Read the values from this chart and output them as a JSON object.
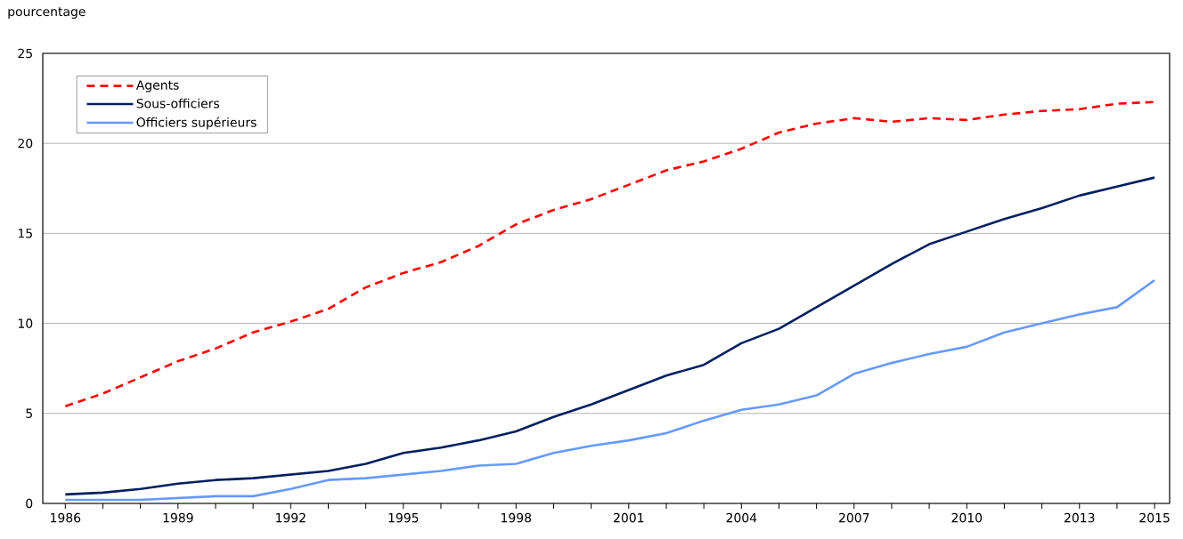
{
  "chart_data": {
    "type": "line",
    "ylabel": "pourcentage",
    "x": [
      1986,
      1987,
      1988,
      1989,
      1990,
      1991,
      1992,
      1993,
      1994,
      1995,
      1996,
      1997,
      1998,
      1999,
      2000,
      2001,
      2002,
      2003,
      2004,
      2005,
      2006,
      2007,
      2008,
      2009,
      2010,
      2011,
      2012,
      2013,
      2014,
      2015
    ],
    "series": [
      {
        "name": "Agents",
        "color": "#ff0000",
        "line_style": "dashed",
        "values": [
          5.4,
          6.1,
          7.0,
          7.9,
          8.6,
          9.5,
          10.1,
          10.8,
          12.0,
          12.8,
          13.4,
          14.3,
          15.5,
          16.3,
          16.9,
          17.7,
          18.5,
          19.0,
          19.7,
          20.6,
          21.1,
          21.4,
          21.2,
          21.4,
          21.3,
          21.6,
          21.8,
          21.9,
          22.2,
          22.3
        ]
      },
      {
        "name": "Sous-officiers",
        "color": "#002060",
        "line_style": "solid",
        "values": [
          0.5,
          0.6,
          0.8,
          1.1,
          1.3,
          1.4,
          1.6,
          1.8,
          2.2,
          2.8,
          3.1,
          3.5,
          4.0,
          4.8,
          5.5,
          6.3,
          7.1,
          7.7,
          8.9,
          9.7,
          10.9,
          12.1,
          13.3,
          14.4,
          15.1,
          15.8,
          16.4,
          17.1,
          17.6,
          18.1
        ]
      },
      {
        "name": "Officiers supérieurs",
        "color": "#6699ff",
        "line_style": "solid",
        "values": [
          0.2,
          0.2,
          0.2,
          0.3,
          0.4,
          0.4,
          0.8,
          1.3,
          1.4,
          1.6,
          1.8,
          2.1,
          2.2,
          2.8,
          3.2,
          3.5,
          3.9,
          4.6,
          5.2,
          5.5,
          6.0,
          7.2,
          7.8,
          8.3,
          8.7,
          9.5,
          10.0,
          10.5,
          10.9,
          12.4
        ]
      }
    ],
    "xlim": [
      1985.4,
      2015.4
    ],
    "xticks": [
      1986,
      {
        "value": 1987,
        "label": null
      },
      {
        "value": 1988,
        "label": null
      },
      1989,
      {
        "value": 1990,
        "label": null
      },
      {
        "value": 1991,
        "label": null
      },
      1992,
      {
        "value": 1993,
        "label": null
      },
      {
        "value": 1994,
        "label": null
      },
      1995,
      {
        "value": 1996,
        "label": null
      },
      {
        "value": 1997,
        "label": null
      },
      1998,
      {
        "value": 1999,
        "label": null
      },
      {
        "value": 2000,
        "label": null
      },
      2001,
      {
        "value": 2002,
        "label": null
      },
      {
        "value": 2003,
        "label": null
      },
      2004,
      {
        "value": 2005,
        "label": null
      },
      {
        "value": 2006,
        "label": null
      },
      2007,
      {
        "value": 2008,
        "label": null
      },
      {
        "value": 2009,
        "label": null
      },
      2010,
      {
        "value": 2011,
        "label": null
      },
      {
        "value": 2012,
        "label": null
      },
      2013,
      {
        "value": 2014,
        "label": null
      },
      2015
    ],
    "ylim": [
      0,
      25
    ],
    "yticks": [
      0,
      5,
      10,
      15,
      20,
      25
    ],
    "grid": "y",
    "legend": "top left"
  }
}
